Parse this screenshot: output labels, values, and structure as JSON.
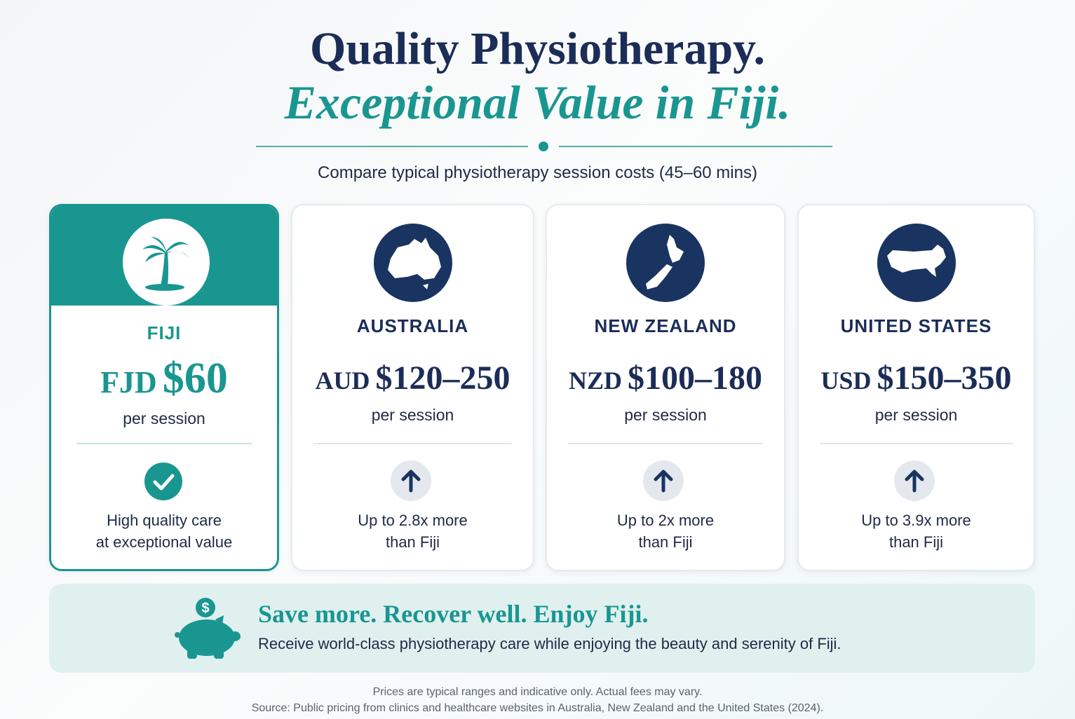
{
  "header": {
    "title_line1": "Quality Physiotherapy.",
    "title_line2": "Exceptional Value in Fiji.",
    "subtitle": "Compare typical physiotherapy session costs (45–60 mins)"
  },
  "cards": [
    {
      "country": "FIJI",
      "currency": "FJD",
      "price": "$60",
      "unit": "per session",
      "note_line1": "High quality care",
      "note_line2": "at exceptional value"
    },
    {
      "country": "AUSTRALIA",
      "currency": "AUD",
      "price": "$120–250",
      "unit": "per session",
      "note_line1": "Up to 2.8x more",
      "note_line2": "than Fiji"
    },
    {
      "country": "NEW ZEALAND",
      "currency": "NZD",
      "price": "$100–180",
      "unit": "per session",
      "note_line1": "Up to 2x more",
      "note_line2": "than Fiji"
    },
    {
      "country": "UNITED STATES",
      "currency": "USD",
      "price": "$150–350",
      "unit": "per session",
      "note_line1": "Up to 3.9x more",
      "note_line2": "than Fiji"
    }
  ],
  "banner": {
    "heading": "Save more. Recover well. Enjoy Fiji.",
    "text": "Receive world-class physiotherapy care while enjoying the beauty and serenity of Fiji."
  },
  "footer": {
    "line1": "Prices are typical ranges and indicative only. Actual fees may vary.",
    "line2": "Source: Public pricing from clinics and healthcare websites in Australia, New Zealand and the United States (2024)."
  }
}
